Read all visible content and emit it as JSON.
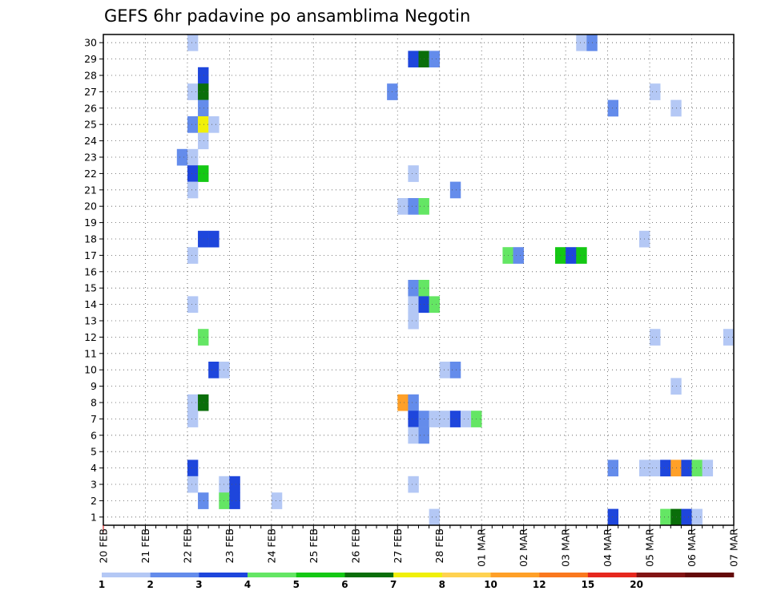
{
  "chart_data": {
    "type": "heatmap",
    "title": "GEFS 6hr padavine po ansamblima Negotin",
    "x_tick_labels": [
      "20 FEB",
      "21 FEB",
      "22 FEB",
      "23 FEB",
      "24 FEB",
      "25 FEB",
      "26 FEB",
      "27 FEB",
      "28 FEB",
      "01 MAR",
      "02 MAR",
      "03 MAR",
      "04 MAR",
      "05 MAR",
      "06 MAR",
      "07 MAR"
    ],
    "y_tick_labels": [
      "1",
      "2",
      "3",
      "4",
      "5",
      "6",
      "7",
      "8",
      "9",
      "10",
      "11",
      "12",
      "13",
      "14",
      "15",
      "16",
      "17",
      "18",
      "19",
      "20",
      "21",
      "22",
      "23",
      "24",
      "25",
      "26",
      "27",
      "28",
      "29",
      "30"
    ],
    "x_range_steps": [
      0,
      60
    ],
    "y_range": [
      0.5,
      30.5
    ],
    "grid": true,
    "colorbar": {
      "labels": [
        "1",
        "2",
        "3",
        "4",
        "5",
        "6",
        "7",
        "8",
        "10",
        "12",
        "15",
        "20"
      ],
      "colors": [
        "#b4c8f5",
        "#648ceb",
        "#1e46dc",
        "#64e664",
        "#14c814",
        "#0a6e0a",
        "#f0f00a",
        "#ffd250",
        "#ffa028",
        "#fa781e",
        "#e6281e",
        "#821414",
        "#640a0a"
      ]
    },
    "cells": [
      {
        "step": 8,
        "member": 30,
        "value": 1
      },
      {
        "step": 45,
        "member": 30,
        "value": 1
      },
      {
        "step": 46,
        "member": 30,
        "value": 2
      },
      {
        "step": 29,
        "member": 29,
        "value": 3
      },
      {
        "step": 30,
        "member": 29,
        "value": 6
      },
      {
        "step": 31,
        "member": 29,
        "value": 2
      },
      {
        "step": 9,
        "member": 28,
        "value": 3
      },
      {
        "step": 8,
        "member": 27,
        "value": 1
      },
      {
        "step": 9,
        "member": 27,
        "value": 6
      },
      {
        "step": 27,
        "member": 27,
        "value": 2
      },
      {
        "step": 52,
        "member": 27,
        "value": 1
      },
      {
        "step": 9,
        "member": 26,
        "value": 2
      },
      {
        "step": 48,
        "member": 26,
        "value": 2
      },
      {
        "step": 54,
        "member": 26,
        "value": 1
      },
      {
        "step": 8,
        "member": 25,
        "value": 2
      },
      {
        "step": 9,
        "member": 25,
        "value": 7
      },
      {
        "step": 10,
        "member": 25,
        "value": 1
      },
      {
        "step": 9,
        "member": 24,
        "value": 1
      },
      {
        "step": 7,
        "member": 23,
        "value": 2
      },
      {
        "step": 8,
        "member": 23,
        "value": 1
      },
      {
        "step": 8,
        "member": 22,
        "value": 3
      },
      {
        "step": 9,
        "member": 22,
        "value": 5
      },
      {
        "step": 29,
        "member": 22,
        "value": 1
      },
      {
        "step": 8,
        "member": 21,
        "value": 1
      },
      {
        "step": 33,
        "member": 21,
        "value": 2
      },
      {
        "step": 28,
        "member": 20,
        "value": 1
      },
      {
        "step": 29,
        "member": 20,
        "value": 2
      },
      {
        "step": 30,
        "member": 20,
        "value": 4
      },
      {
        "step": 9,
        "member": 18,
        "value": 3
      },
      {
        "step": 10,
        "member": 18,
        "value": 3
      },
      {
        "step": 51,
        "member": 18,
        "value": 1
      },
      {
        "step": 8,
        "member": 17,
        "value": 1
      },
      {
        "step": 38,
        "member": 17,
        "value": 4
      },
      {
        "step": 39,
        "member": 17,
        "value": 2
      },
      {
        "step": 43,
        "member": 17,
        "value": 5
      },
      {
        "step": 44,
        "member": 17,
        "value": 3
      },
      {
        "step": 45,
        "member": 17,
        "value": 5
      },
      {
        "step": 29,
        "member": 15,
        "value": 2
      },
      {
        "step": 30,
        "member": 15,
        "value": 4
      },
      {
        "step": 8,
        "member": 14,
        "value": 1
      },
      {
        "step": 29,
        "member": 14,
        "value": 1
      },
      {
        "step": 30,
        "member": 14,
        "value": 3
      },
      {
        "step": 31,
        "member": 14,
        "value": 4
      },
      {
        "step": 29,
        "member": 13,
        "value": 1
      },
      {
        "step": 9,
        "member": 12,
        "value": 4
      },
      {
        "step": 52,
        "member": 12,
        "value": 1
      },
      {
        "step": 59,
        "member": 12,
        "value": 1
      },
      {
        "step": 10,
        "member": 10,
        "value": 3
      },
      {
        "step": 11,
        "member": 10,
        "value": 1
      },
      {
        "step": 32,
        "member": 10,
        "value": 1
      },
      {
        "step": 33,
        "member": 10,
        "value": 2
      },
      {
        "step": 54,
        "member": 9,
        "value": 1
      },
      {
        "step": 8,
        "member": 8,
        "value": 1
      },
      {
        "step": 9,
        "member": 8,
        "value": 6
      },
      {
        "step": 28,
        "member": 8,
        "value": 11
      },
      {
        "step": 29,
        "member": 8,
        "value": 2
      },
      {
        "step": 8,
        "member": 7,
        "value": 1
      },
      {
        "step": 29,
        "member": 7,
        "value": 3
      },
      {
        "step": 30,
        "member": 7,
        "value": 2
      },
      {
        "step": 31,
        "member": 7,
        "value": 1
      },
      {
        "step": 32,
        "member": 7,
        "value": 1
      },
      {
        "step": 33,
        "member": 7,
        "value": 3
      },
      {
        "step": 34,
        "member": 7,
        "value": 1
      },
      {
        "step": 35,
        "member": 7,
        "value": 4
      },
      {
        "step": 29,
        "member": 6,
        "value": 1
      },
      {
        "step": 30,
        "member": 6,
        "value": 2
      },
      {
        "step": 8,
        "member": 4,
        "value": 3
      },
      {
        "step": 48,
        "member": 4,
        "value": 2
      },
      {
        "step": 51,
        "member": 4,
        "value": 1
      },
      {
        "step": 52,
        "member": 4,
        "value": 1
      },
      {
        "step": 53,
        "member": 4,
        "value": 3
      },
      {
        "step": 54,
        "member": 4,
        "value": 10
      },
      {
        "step": 55,
        "member": 4,
        "value": 3
      },
      {
        "step": 56,
        "member": 4,
        "value": 4
      },
      {
        "step": 57,
        "member": 4,
        "value": 1
      },
      {
        "step": 8,
        "member": 3,
        "value": 1
      },
      {
        "step": 11,
        "member": 3,
        "value": 1
      },
      {
        "step": 12,
        "member": 3,
        "value": 3
      },
      {
        "step": 29,
        "member": 3,
        "value": 1
      },
      {
        "step": 9,
        "member": 2,
        "value": 2
      },
      {
        "step": 11,
        "member": 2,
        "value": 4
      },
      {
        "step": 12,
        "member": 2,
        "value": 3
      },
      {
        "step": 16,
        "member": 2,
        "value": 1
      },
      {
        "step": 31,
        "member": 1,
        "value": 1
      },
      {
        "step": 48,
        "member": 1,
        "value": 3
      },
      {
        "step": 53,
        "member": 1,
        "value": 4
      },
      {
        "step": 54,
        "member": 1,
        "value": 6
      },
      {
        "step": 55,
        "member": 1,
        "value": 3
      },
      {
        "step": 56,
        "member": 1,
        "value": 1
      }
    ]
  }
}
